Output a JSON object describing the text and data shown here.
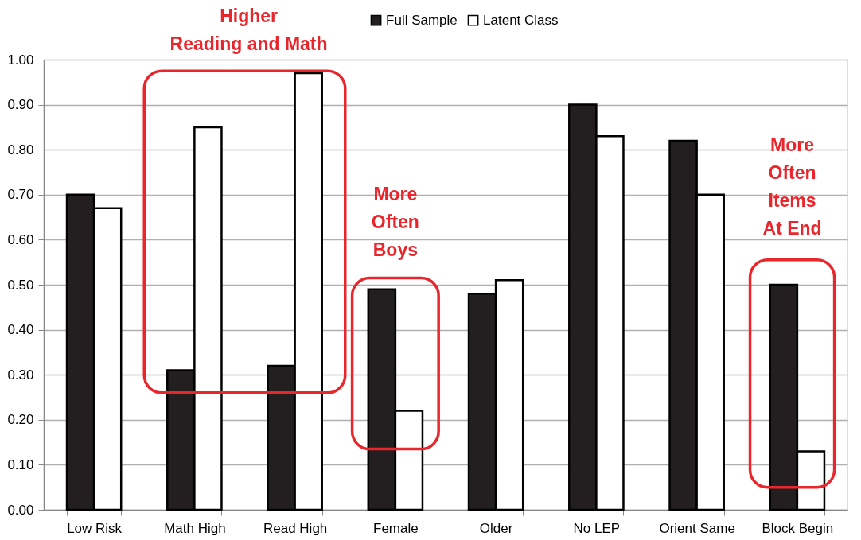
{
  "chart_data": {
    "type": "bar",
    "categories": [
      "Low Risk",
      "Math High",
      "Read High",
      "Female",
      "Older",
      "No LEP",
      "Orient Same",
      "Block Begin"
    ],
    "series": [
      {
        "name": "Full Sample",
        "color": "#231f20",
        "values": [
          0.7,
          0.31,
          0.32,
          0.49,
          0.48,
          0.9,
          0.82,
          0.5
        ]
      },
      {
        "name": "Latent Class",
        "color": "#ffffff",
        "values": [
          0.67,
          0.85,
          0.97,
          0.22,
          0.51,
          0.83,
          0.7,
          0.13
        ]
      }
    ],
    "ylim": [
      0,
      1
    ],
    "yticks": [
      {
        "value": 0,
        "label": "0.00"
      },
      {
        "value": 0.1,
        "label": "0.10"
      },
      {
        "value": 0.2,
        "label": "0.20"
      },
      {
        "value": 0.3,
        "label": "0.30"
      },
      {
        "value": 0.4,
        "label": "0.40"
      },
      {
        "value": 0.5,
        "label": "0.50"
      },
      {
        "value": 0.6,
        "label": "0.60"
      },
      {
        "value": 0.7,
        "label": "0.70"
      },
      {
        "value": 0.8,
        "label": "0.80"
      },
      {
        "value": 0.9,
        "label": "0.90"
      },
      {
        "value": 1,
        "label": "1.00"
      }
    ],
    "annotations": [
      "Higher\nReading and Math",
      "More\nOften\nBoys",
      "More\nOften\nItems\nAt End"
    ],
    "grid": "y",
    "legend": "top"
  }
}
